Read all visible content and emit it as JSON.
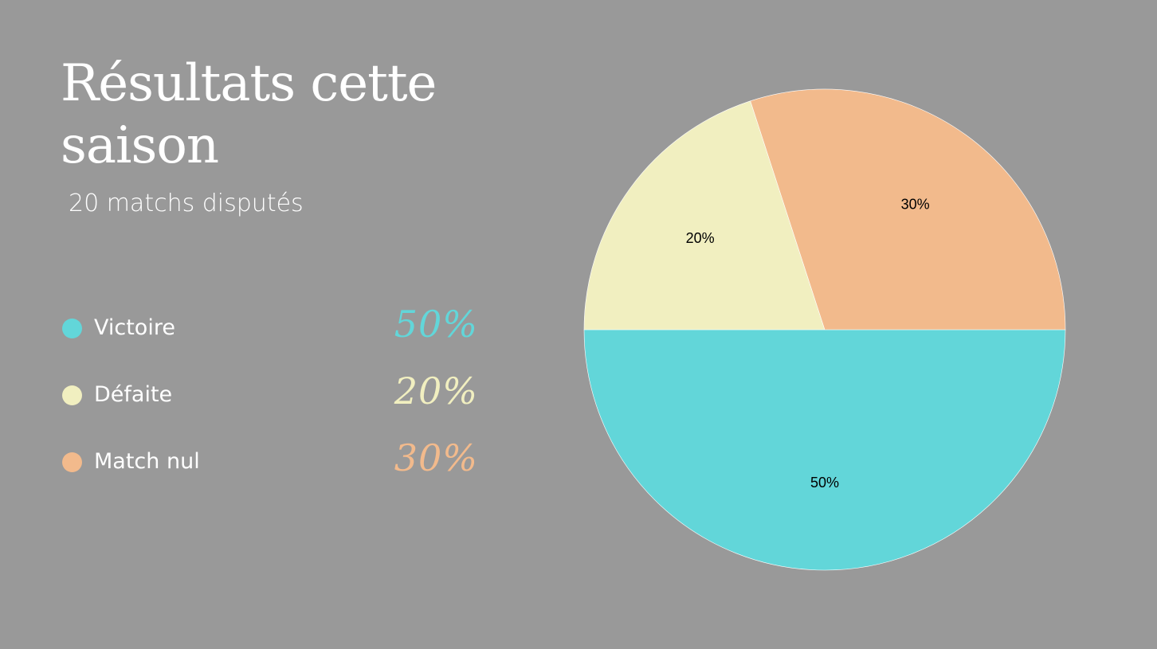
{
  "slide": {
    "background": "#999999",
    "title": "Résultats cette saison",
    "subtitle": "20 matchs disputés"
  },
  "legend": [
    {
      "label": "Victoire",
      "value_label": "50%",
      "color": "#62d6d9"
    },
    {
      "label": "Défaite",
      "value_label": "20%",
      "color": "#f1efc0"
    },
    {
      "label": "Match nul",
      "value_label": "30%",
      "color": "#f2ba8c"
    }
  ],
  "chart_data": {
    "type": "pie",
    "categories": [
      "Victoire",
      "Défaite",
      "Match nul"
    ],
    "values": [
      50,
      20,
      30
    ],
    "value_labels": [
      "50%",
      "20%",
      "30%"
    ],
    "colors": [
      "#62d6d9",
      "#f1efc0",
      "#f2ba8c"
    ],
    "title": "",
    "legend": "none"
  }
}
